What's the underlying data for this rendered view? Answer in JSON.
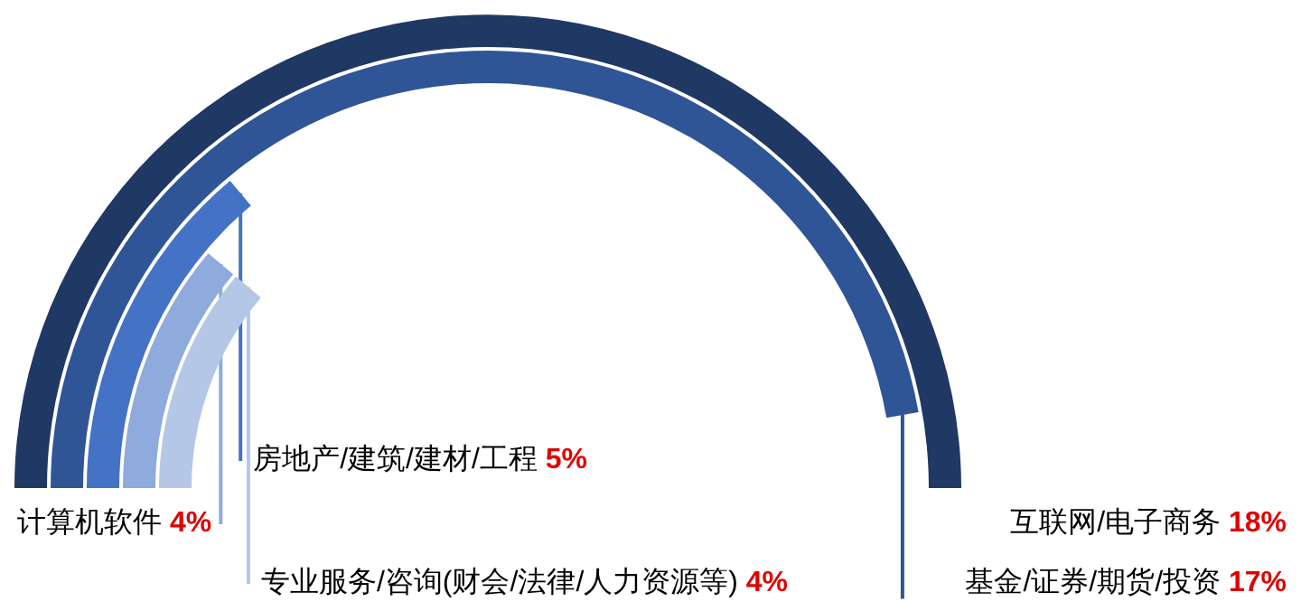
{
  "chart_data": {
    "type": "other",
    "categories": [
      "互联网/电子商务",
      "基金/证券/期货/投资",
      "房地产/建筑/建材/工程",
      "计算机软件",
      "专业服务/咨询(财会/法律/人力资源等)"
    ],
    "values": [
      18,
      17,
      5,
      4,
      4
    ],
    "value_labels": [
      "18%",
      "17%",
      "5%",
      "4%",
      "4%"
    ],
    "colors": [
      "#1f3864",
      "#2f5597",
      "#4472c4",
      "#8faadc",
      "#b4c7e7"
    ]
  }
}
